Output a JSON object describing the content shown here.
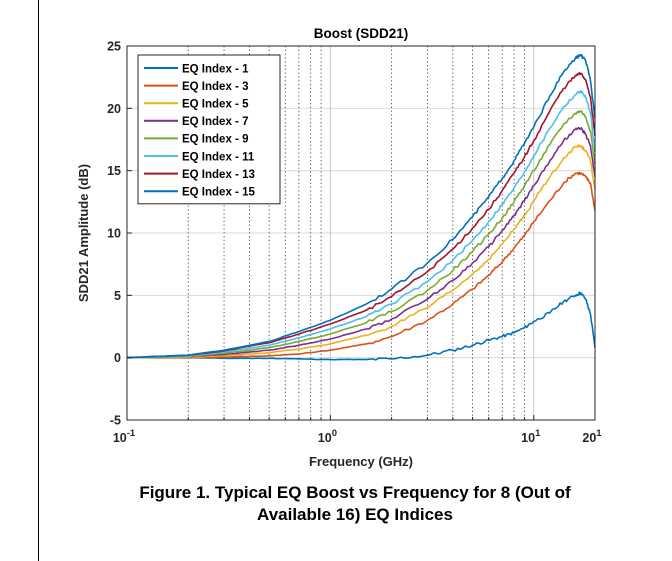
{
  "chart_data": {
    "type": "line",
    "title": "Boost (SDD21)",
    "xlabel": "Frequency (GHz)",
    "ylabel": "SDD21 Amplitude (dB)",
    "xscale": "log",
    "xlim": [
      0.1,
      20
    ],
    "ylim": [
      -5,
      25
    ],
    "y_ticks": [
      "25",
      "20",
      "15",
      "10",
      "5",
      "0",
      "-5"
    ],
    "x_tick_labels": [
      {
        "base": "10",
        "exp": "-1",
        "value": 0.1
      },
      {
        "base": "10",
        "exp": "0",
        "value": 1
      },
      {
        "base": "10",
        "exp": "1",
        "value": 10
      },
      {
        "base": "20",
        "exp": "1",
        "value": 20
      }
    ],
    "grid": true,
    "legend_position": "top-left",
    "x": [
      0.1,
      0.2,
      0.3,
      0.5,
      0.7,
      1,
      1.5,
      2,
      3,
      4,
      5,
      6,
      7,
      8,
      9,
      10,
      12,
      14,
      16,
      17,
      18,
      19,
      20
    ],
    "series": [
      {
        "name": "EQ Index - 1",
        "color": "#0072BD",
        "values": [
          0,
          0,
          -0.05,
          -0.05,
          -0.1,
          -0.15,
          -0.15,
          -0.1,
          0.2,
          0.6,
          1.0,
          1.4,
          1.7,
          2.0,
          2.4,
          2.9,
          3.6,
          4.5,
          5.0,
          5.2,
          4.7,
          3.5,
          0.8
        ]
      },
      {
        "name": "EQ Index - 3",
        "color": "#D95319",
        "values": [
          0,
          0,
          0.05,
          0.15,
          0.3,
          0.6,
          1.1,
          1.7,
          3.0,
          4.3,
          5.5,
          6.6,
          7.7,
          8.8,
          9.8,
          10.9,
          12.6,
          14.0,
          14.8,
          14.8,
          14.5,
          14.0,
          11.8
        ]
      },
      {
        "name": "EQ Index - 5",
        "color": "#EDB120",
        "values": [
          0,
          0.05,
          0.15,
          0.4,
          0.7,
          1.1,
          1.8,
          2.5,
          4.0,
          5.4,
          6.7,
          7.9,
          9.1,
          10.3,
          11.4,
          12.6,
          14.5,
          16.0,
          16.9,
          17.0,
          16.6,
          15.8,
          13.5
        ]
      },
      {
        "name": "EQ Index - 7",
        "color": "#7E2F8E",
        "values": [
          0,
          0.1,
          0.25,
          0.6,
          1.0,
          1.5,
          2.3,
          3.1,
          4.7,
          6.2,
          7.6,
          8.9,
          10.2,
          11.4,
          12.6,
          13.8,
          15.8,
          17.4,
          18.3,
          18.4,
          17.9,
          17.0,
          14.5
        ]
      },
      {
        "name": "EQ Index - 9",
        "color": "#77AC30",
        "values": [
          0,
          0.1,
          0.35,
          0.8,
          1.3,
          1.9,
          2.8,
          3.7,
          5.4,
          7.0,
          8.5,
          9.9,
          11.2,
          12.5,
          13.8,
          15.0,
          17.1,
          18.7,
          19.6,
          19.8,
          19.3,
          18.2,
          15.5
        ]
      },
      {
        "name": "EQ Index - 11",
        "color": "#4DBEEE",
        "values": [
          0,
          0.15,
          0.45,
          1.0,
          1.6,
          2.3,
          3.3,
          4.3,
          6.1,
          7.8,
          9.4,
          10.9,
          12.3,
          13.6,
          14.9,
          16.2,
          18.4,
          20.1,
          21.1,
          21.4,
          20.9,
          19.6,
          16.5
        ]
      },
      {
        "name": "EQ Index - 13",
        "color": "#A2142F",
        "values": [
          0,
          0.2,
          0.55,
          1.2,
          1.9,
          2.7,
          3.8,
          4.9,
          6.9,
          8.7,
          10.4,
          11.9,
          13.4,
          14.8,
          16.1,
          17.4,
          19.8,
          21.6,
          22.6,
          22.8,
          22.3,
          20.9,
          17.8
        ]
      },
      {
        "name": "EQ Index - 15",
        "color": "#0072BD",
        "values": [
          0,
          0.2,
          0.6,
          1.3,
          2.1,
          3.0,
          4.3,
          5.5,
          7.6,
          9.5,
          11.3,
          12.9,
          14.4,
          15.8,
          17.2,
          18.5,
          21.0,
          22.9,
          24.0,
          24.3,
          23.8,
          22.2,
          19.2
        ]
      }
    ]
  },
  "caption": {
    "line1": "Figure 1.  Typical EQ Boost vs Frequency for 8 (Out of",
    "line2": "Available 16) EQ Indices"
  }
}
